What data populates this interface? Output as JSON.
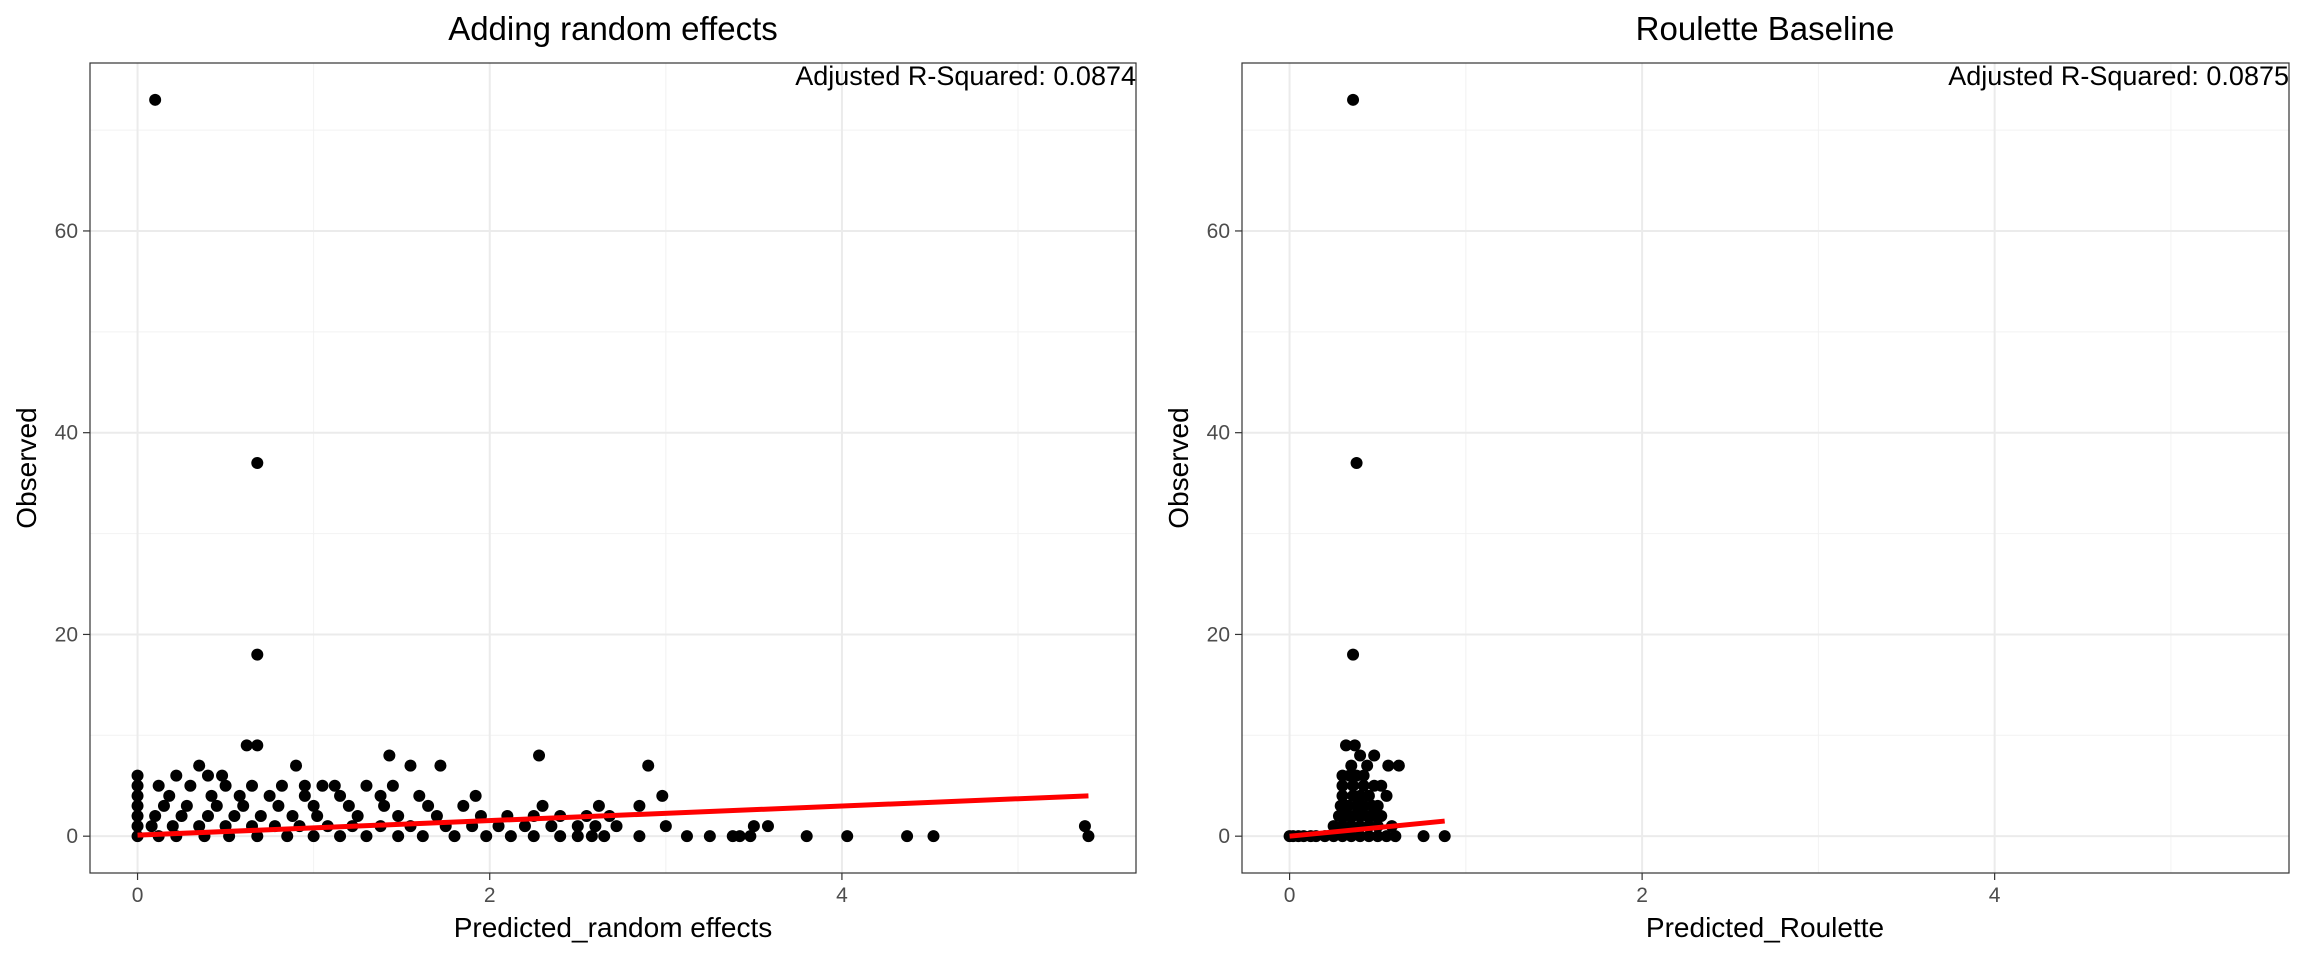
{
  "chart_data": [
    {
      "type": "scatter",
      "title": "Adding random effects",
      "xlabel": "Predicted_random effects",
      "ylabel": "Observed",
      "xlim": [
        -0.27,
        5.67
      ],
      "ylim": [
        -3.65,
        76.65
      ],
      "x_ticks": [
        0,
        2,
        4
      ],
      "y_ticks": [
        0,
        20,
        40,
        60
      ],
      "grid": true,
      "annotation": "Adjusted R-Squared: 0.0874",
      "fit_line": {
        "color": "#ff0000",
        "x": [
          0,
          5.4
        ],
        "y": [
          0.1,
          4.0
        ]
      },
      "points": [
        [
          0.1,
          73
        ],
        [
          0.68,
          37
        ],
        [
          0.68,
          18
        ],
        [
          0.62,
          9
        ],
        [
          0.68,
          9
        ],
        [
          2.28,
          8
        ],
        [
          1.43,
          8
        ],
        [
          2.9,
          7
        ],
        [
          1.55,
          7
        ],
        [
          1.72,
          7
        ],
        [
          0.35,
          7
        ],
        [
          0.9,
          7
        ],
        [
          0,
          6
        ],
        [
          0.22,
          6
        ],
        [
          0.4,
          6
        ],
        [
          0.48,
          6
        ],
        [
          0.65,
          5
        ],
        [
          0.82,
          5
        ],
        [
          1.05,
          5
        ],
        [
          1.12,
          5
        ],
        [
          1.3,
          5
        ],
        [
          1.45,
          5
        ],
        [
          0,
          5
        ],
        [
          0.12,
          5
        ],
        [
          0.3,
          5
        ],
        [
          0.5,
          5
        ],
        [
          0.95,
          5
        ],
        [
          0,
          4
        ],
        [
          0.18,
          4
        ],
        [
          0.42,
          4
        ],
        [
          0.58,
          4
        ],
        [
          0.75,
          4
        ],
        [
          0.95,
          4
        ],
        [
          1.15,
          4
        ],
        [
          1.38,
          4
        ],
        [
          1.6,
          4
        ],
        [
          1.92,
          4
        ],
        [
          2.98,
          4
        ],
        [
          0,
          3
        ],
        [
          0.15,
          3
        ],
        [
          0.28,
          3
        ],
        [
          0.45,
          3
        ],
        [
          0.6,
          3
        ],
        [
          0.8,
          3
        ],
        [
          1.0,
          3
        ],
        [
          1.2,
          3
        ],
        [
          1.4,
          3
        ],
        [
          1.65,
          3
        ],
        [
          1.85,
          3
        ],
        [
          2.3,
          3
        ],
        [
          2.62,
          3
        ],
        [
          2.85,
          3
        ],
        [
          0,
          2
        ],
        [
          0.1,
          2
        ],
        [
          0.25,
          2
        ],
        [
          0.4,
          2
        ],
        [
          0.55,
          2
        ],
        [
          0.7,
          2
        ],
        [
          0.88,
          2
        ],
        [
          1.02,
          2
        ],
        [
          1.25,
          2
        ],
        [
          1.48,
          2
        ],
        [
          1.7,
          2
        ],
        [
          1.95,
          2
        ],
        [
          2.1,
          2
        ],
        [
          2.25,
          2
        ],
        [
          2.4,
          2
        ],
        [
          2.55,
          2
        ],
        [
          2.68,
          2
        ],
        [
          0,
          1
        ],
        [
          0.08,
          1
        ],
        [
          0.2,
          1
        ],
        [
          0.35,
          1
        ],
        [
          0.5,
          1
        ],
        [
          0.65,
          1
        ],
        [
          0.78,
          1
        ],
        [
          0.92,
          1
        ],
        [
          1.08,
          1
        ],
        [
          1.22,
          1
        ],
        [
          1.38,
          1
        ],
        [
          1.55,
          1
        ],
        [
          1.75,
          1
        ],
        [
          1.9,
          1
        ],
        [
          2.05,
          1
        ],
        [
          2.2,
          1
        ],
        [
          2.35,
          1
        ],
        [
          2.5,
          1
        ],
        [
          2.6,
          1
        ],
        [
          2.72,
          1
        ],
        [
          3.0,
          1
        ],
        [
          3.5,
          1
        ],
        [
          3.58,
          1
        ],
        [
          5.38,
          1
        ],
        [
          0,
          0
        ],
        [
          0.12,
          0
        ],
        [
          0.22,
          0
        ],
        [
          0.38,
          0
        ],
        [
          0.52,
          0
        ],
        [
          0.68,
          0
        ],
        [
          0.85,
          0
        ],
        [
          1.0,
          0
        ],
        [
          1.15,
          0
        ],
        [
          1.3,
          0
        ],
        [
          1.48,
          0
        ],
        [
          1.62,
          0
        ],
        [
          1.8,
          0
        ],
        [
          1.98,
          0
        ],
        [
          2.12,
          0
        ],
        [
          2.25,
          0
        ],
        [
          2.4,
          0
        ],
        [
          2.5,
          0
        ],
        [
          2.58,
          0
        ],
        [
          2.65,
          0
        ],
        [
          2.85,
          0
        ],
        [
          3.12,
          0
        ],
        [
          3.25,
          0
        ],
        [
          3.38,
          0
        ],
        [
          3.42,
          0
        ],
        [
          3.48,
          0
        ],
        [
          3.8,
          0
        ],
        [
          4.03,
          0
        ],
        [
          4.37,
          0
        ],
        [
          4.52,
          0
        ],
        [
          5.4,
          0
        ]
      ]
    },
    {
      "type": "scatter",
      "title": "Roulette Baseline",
      "xlabel": "Predicted_Roulette",
      "ylabel": "Observed",
      "xlim": [
        -0.27,
        5.67
      ],
      "ylim": [
        -3.65,
        76.65
      ],
      "x_ticks": [
        0,
        2,
        4
      ],
      "y_ticks": [
        0,
        20,
        40,
        60
      ],
      "grid": true,
      "annotation": "Adjusted R-Squared: 0.0875",
      "fit_line": {
        "color": "#ff0000",
        "x": [
          0,
          0.88
        ],
        "y": [
          0.0,
          1.5
        ]
      },
      "points": [
        [
          0.36,
          73
        ],
        [
          0.38,
          37
        ],
        [
          0.36,
          18
        ],
        [
          0.32,
          9
        ],
        [
          0.37,
          9
        ],
        [
          0.4,
          8
        ],
        [
          0.48,
          8
        ],
        [
          0.56,
          7
        ],
        [
          0.62,
          7
        ],
        [
          0.35,
          7
        ],
        [
          0.44,
          7
        ],
        [
          0.3,
          6
        ],
        [
          0.34,
          6
        ],
        [
          0.38,
          6
        ],
        [
          0.42,
          6
        ],
        [
          0.3,
          5
        ],
        [
          0.36,
          5
        ],
        [
          0.42,
          5
        ],
        [
          0.48,
          5
        ],
        [
          0.52,
          5
        ],
        [
          0.3,
          4
        ],
        [
          0.36,
          4
        ],
        [
          0.4,
          4
        ],
        [
          0.45,
          4
        ],
        [
          0.55,
          4
        ],
        [
          0.29,
          3
        ],
        [
          0.33,
          3
        ],
        [
          0.38,
          3
        ],
        [
          0.42,
          3
        ],
        [
          0.47,
          3
        ],
        [
          0.5,
          3
        ],
        [
          0.28,
          2
        ],
        [
          0.32,
          2
        ],
        [
          0.36,
          2
        ],
        [
          0.4,
          2
        ],
        [
          0.44,
          2
        ],
        [
          0.48,
          2
        ],
        [
          0.52,
          2
        ],
        [
          0.25,
          1
        ],
        [
          0.3,
          1
        ],
        [
          0.35,
          1
        ],
        [
          0.4,
          1
        ],
        [
          0.45,
          1
        ],
        [
          0.5,
          1
        ],
        [
          0.58,
          1
        ],
        [
          0,
          0
        ],
        [
          0.02,
          0
        ],
        [
          0.05,
          0
        ],
        [
          0.08,
          0
        ],
        [
          0.12,
          0
        ],
        [
          0.15,
          0
        ],
        [
          0.2,
          0
        ],
        [
          0.25,
          0
        ],
        [
          0.3,
          0
        ],
        [
          0.35,
          0
        ],
        [
          0.4,
          0
        ],
        [
          0.45,
          0
        ],
        [
          0.5,
          0
        ],
        [
          0.55,
          0
        ],
        [
          0.6,
          0
        ],
        [
          0.76,
          0
        ],
        [
          0.88,
          0
        ]
      ]
    }
  ]
}
